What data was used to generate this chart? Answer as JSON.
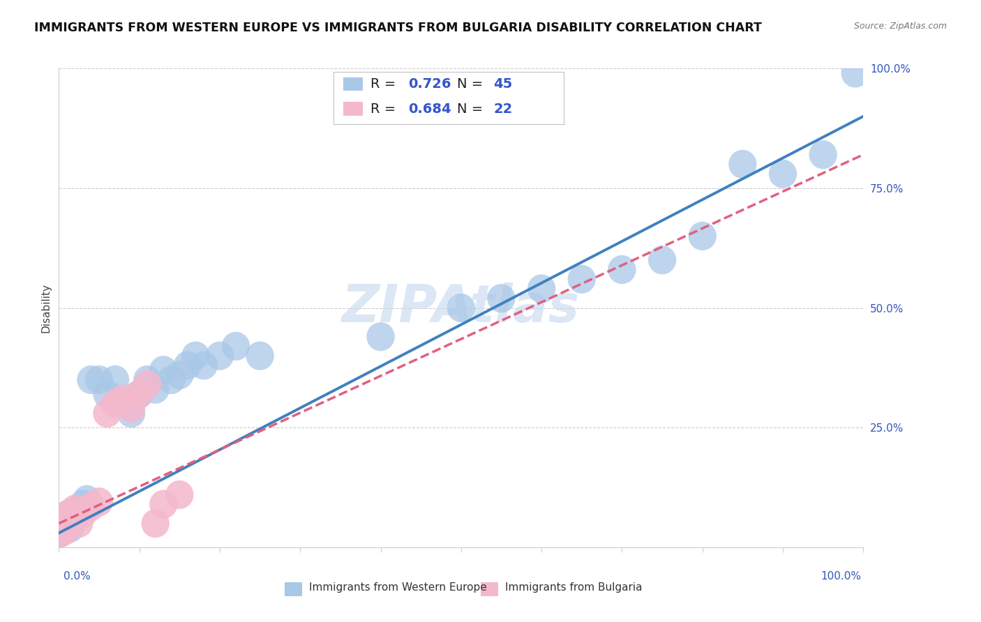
{
  "title": "IMMIGRANTS FROM WESTERN EUROPE VS IMMIGRANTS FROM BULGARIA DISABILITY CORRELATION CHART",
  "source": "Source: ZipAtlas.com",
  "ylabel": "Disability",
  "blue_R": 0.726,
  "blue_N": 45,
  "pink_R": 0.684,
  "pink_N": 22,
  "blue_color": "#a8c8e8",
  "pink_color": "#f4b8cc",
  "line_blue": "#4080c0",
  "line_pink": "#e06080",
  "blue_x": [
    0.2,
    0.4,
    0.5,
    0.6,
    0.7,
    0.8,
    1.0,
    1.2,
    1.4,
    1.6,
    1.8,
    2.0,
    2.5,
    3.0,
    3.5,
    4.0,
    5.0,
    6.0,
    7.0,
    8.0,
    9.0,
    10.0,
    11.0,
    12.0,
    13.0,
    14.0,
    15.0,
    16.0,
    17.0,
    18.0,
    20.0,
    22.0,
    25.0,
    40.0,
    50.0,
    55.0,
    60.0,
    65.0,
    70.0,
    75.0,
    80.0,
    85.0,
    90.0,
    95.0,
    99.0
  ],
  "blue_y": [
    3.0,
    4.0,
    5.0,
    4.5,
    3.5,
    6.0,
    5.0,
    7.0,
    4.0,
    6.5,
    5.5,
    7.5,
    8.0,
    9.0,
    10.0,
    35.0,
    35.0,
    32.0,
    35.0,
    30.0,
    28.0,
    32.0,
    35.0,
    33.0,
    37.0,
    35.0,
    36.0,
    38.0,
    40.0,
    38.0,
    40.0,
    42.0,
    40.0,
    44.0,
    50.0,
    52.0,
    54.0,
    56.0,
    58.0,
    60.0,
    65.0,
    80.0,
    78.0,
    82.0,
    99.0
  ],
  "pink_x": [
    0.2,
    0.3,
    0.5,
    0.6,
    0.8,
    1.0,
    1.2,
    1.5,
    2.0,
    2.5,
    3.0,
    4.0,
    5.0,
    6.0,
    7.0,
    8.0,
    9.0,
    10.0,
    11.0,
    12.0,
    13.0,
    15.0
  ],
  "pink_y": [
    3.0,
    4.0,
    5.0,
    6.0,
    3.5,
    5.5,
    7.0,
    6.5,
    8.0,
    5.0,
    7.0,
    8.5,
    9.5,
    28.0,
    30.0,
    31.0,
    29.0,
    32.0,
    34.0,
    5.0,
    9.0,
    11.0
  ],
  "xlim": [
    0,
    100
  ],
  "ylim": [
    0,
    100
  ],
  "yticks": [
    0,
    25,
    50,
    75,
    100
  ],
  "ytick_labels": [
    "",
    "25.0%",
    "50.0%",
    "75.0%",
    "100.0%"
  ],
  "blue_line_x0": 0,
  "blue_line_y0": 3,
  "blue_line_x1": 100,
  "blue_line_y1": 90,
  "pink_line_x0": 0,
  "pink_line_y0": 5,
  "pink_line_x1": 100,
  "pink_line_y1": 82
}
